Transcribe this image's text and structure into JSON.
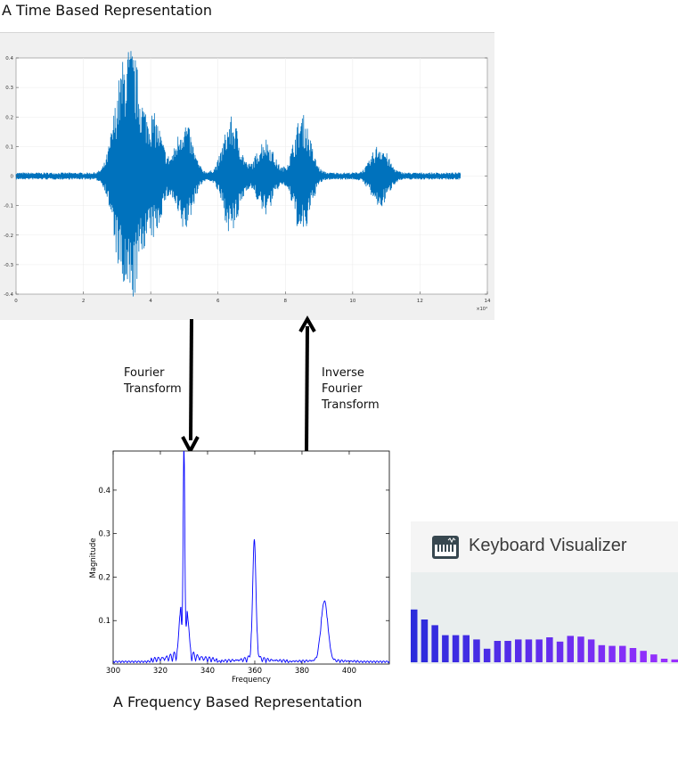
{
  "time_section": {
    "title": "A Time Based Representation",
    "chart_data": {
      "type": "line",
      "color": "#0072bd",
      "x_range": [
        0,
        140000
      ],
      "y_range": [
        -0.4,
        0.4
      ],
      "x_ticks": [
        "0",
        "2",
        "4",
        "6",
        "8",
        "10",
        "12",
        "14"
      ],
      "y_ticks": [
        "0.4",
        "0.3",
        "0.2",
        "0.1",
        "0",
        "-0.1",
        "-0.2",
        "-0.3",
        "-0.4"
      ],
      "x_multiplier": "×10⁴",
      "series": [
        {
          "bursts": [
            [
              31000,
              0.27
            ],
            [
              35000,
              0.34
            ],
            [
              41000,
              0.19
            ],
            [
              50000,
              0.18
            ],
            [
              64000,
              0.19
            ],
            [
              74000,
              0.12
            ],
            [
              85000,
              0.2
            ],
            [
              108000,
              0.1
            ]
          ]
        }
      ],
      "data_end": 132000
    }
  },
  "arrows": {
    "forward_label": [
      "Fourier",
      "Transform"
    ],
    "inverse_label": [
      "Inverse",
      "Fourier",
      "Transform"
    ]
  },
  "frequency_section": {
    "title": "A Frequency Based Representation",
    "chart_data": {
      "type": "line",
      "color": "#0000ff",
      "xlabel": "Frequency",
      "ylabel": "Magnitude",
      "x_range": [
        300,
        417
      ],
      "y_range": [
        0,
        0.49
      ],
      "x_ticks": [
        300,
        320,
        340,
        360,
        380,
        400
      ],
      "y_ticks": [
        0.1,
        0.2,
        0.3,
        0.4
      ],
      "peaks": [
        {
          "x": 330,
          "y": 0.49,
          "width": 0.5
        },
        {
          "x": 328.5,
          "y": 0.11,
          "width": 0.8
        },
        {
          "x": 331.5,
          "y": 0.1,
          "width": 0.8
        },
        {
          "x": 359.8,
          "y": 0.28,
          "width": 1.0
        },
        {
          "x": 389.5,
          "y": 0.14,
          "width": 2.0
        }
      ]
    }
  },
  "keyboard_visualizer": {
    "title": "Keyboard Visualizer",
    "icon": "piano-keyboard-icon",
    "color_start": "#2b2bdc",
    "color_end": "#9b30ff",
    "levels": [
      0.74,
      0.6,
      0.52,
      0.38,
      0.38,
      0.38,
      0.32,
      0.19,
      0.3,
      0.3,
      0.32,
      0.32,
      0.32,
      0.35,
      0.29,
      0.37,
      0.36,
      0.32,
      0.24,
      0.23,
      0.23,
      0.2,
      0.16,
      0.11,
      0.05,
      0.04
    ]
  }
}
